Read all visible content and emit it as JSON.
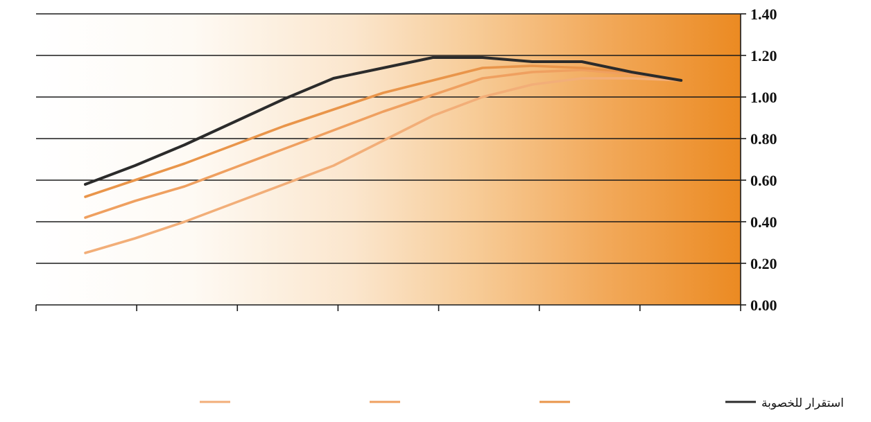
{
  "chart_data": {
    "type": "line",
    "y_tick_labels": [
      "0.00",
      "0.20",
      "0.40",
      "0.60",
      "0.80",
      "1.00",
      "1.20",
      "1.40"
    ],
    "ylim": [
      0,
      1.4
    ],
    "x": [
      1,
      2,
      3,
      4,
      5,
      6,
      7,
      8,
      9,
      10,
      11,
      12,
      13
    ],
    "grid": true,
    "legend_position": "bottom",
    "series": [
      {
        "name": "استقرار للخصوبة",
        "color": "#2b2b2b",
        "values": [
          0.58,
          0.67,
          0.77,
          0.88,
          0.99,
          1.09,
          1.14,
          1.19,
          1.19,
          1.17,
          1.17,
          1.12,
          1.08
        ]
      },
      {
        "name": "",
        "color": "#e9954a",
        "values": [
          0.52,
          0.6,
          0.68,
          0.77,
          0.86,
          0.94,
          1.02,
          1.08,
          1.14,
          1.15,
          1.14,
          1.12,
          1.08
        ]
      },
      {
        "name": "",
        "color": "#efa060",
        "values": [
          0.42,
          0.5,
          0.57,
          0.66,
          0.75,
          0.84,
          0.93,
          1.01,
          1.09,
          1.12,
          1.13,
          1.11,
          1.08
        ]
      },
      {
        "name": "",
        "color": "#f2ae78",
        "values": [
          0.25,
          0.32,
          0.4,
          0.49,
          0.58,
          0.67,
          0.79,
          0.91,
          1.0,
          1.06,
          1.09,
          1.09,
          1.08
        ]
      }
    ]
  },
  "legend": [
    {
      "label": "استقرار للخصوبة",
      "color": "#2b2b2b"
    },
    {
      "label": "",
      "color": "#e9954a"
    },
    {
      "label": "",
      "color": "#efa060"
    },
    {
      "label": "",
      "color": "#f2ae78"
    }
  ]
}
